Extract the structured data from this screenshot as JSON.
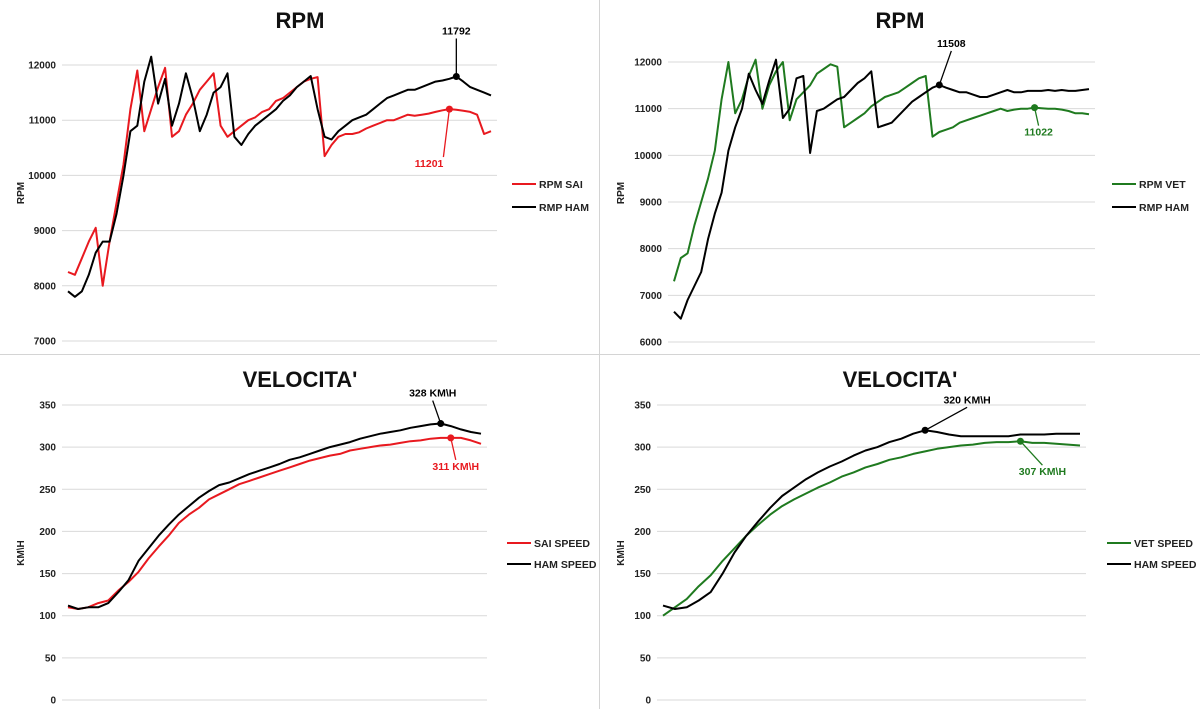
{
  "chart_data": [
    {
      "type": "line",
      "title": "RPM",
      "ylabel": "RPM",
      "ylim": [
        7000,
        12000
      ],
      "yticks": [
        7000,
        8000,
        9000,
        10000,
        11000,
        12000
      ],
      "colors": {
        "a": "#e8191f",
        "b": "#000000"
      },
      "series": [
        {
          "name": "RPM SAI",
          "color": "#e8191f",
          "values": [
            8250,
            8200,
            8500,
            8800,
            9050,
            8000,
            8800,
            9500,
            10200,
            11200,
            11900,
            10800,
            11200,
            11600,
            11950,
            10700,
            10800,
            11100,
            11300,
            11550,
            11700,
            11850,
            10900,
            10700,
            10800,
            10900,
            11000,
            11050,
            11150,
            11200,
            11350,
            11400,
            11500,
            11600,
            11700,
            11750,
            11780,
            10350,
            10550,
            10700,
            10750,
            10750,
            10780,
            10850,
            10900,
            10950,
            11000,
            11000,
            11050,
            11100,
            11080,
            11100,
            11120,
            11150,
            11180,
            11201,
            11190,
            11170,
            11150,
            11100,
            10750,
            10800
          ]
        },
        {
          "name": "RMP HAM",
          "color": "#000000",
          "values": [
            7900,
            7800,
            7900,
            8200,
            8600,
            8800,
            8800,
            9300,
            10000,
            10800,
            10900,
            11700,
            12150,
            11300,
            11750,
            10900,
            11300,
            11850,
            11400,
            10800,
            11100,
            11500,
            11600,
            11850,
            10700,
            10550,
            10750,
            10900,
            11000,
            11100,
            11200,
            11350,
            11450,
            11600,
            11700,
            11800,
            11200,
            10700,
            10650,
            10800,
            10900,
            11000,
            11050,
            11100,
            11200,
            11300,
            11400,
            11450,
            11500,
            11550,
            11550,
            11600,
            11650,
            11700,
            11720,
            11750,
            11792,
            11700,
            11600,
            11550,
            11500,
            11450
          ]
        }
      ],
      "annotations": [
        {
          "text": "11792",
          "series": "RMP HAM",
          "x_index": 56
        },
        {
          "text": "11201",
          "series": "RPM SAI",
          "x_index": 55
        }
      ]
    },
    {
      "type": "line",
      "title": "RPM",
      "ylabel": "RPM",
      "ylim": [
        6000,
        12000
      ],
      "yticks": [
        6000,
        7000,
        8000,
        9000,
        10000,
        11000,
        12000
      ],
      "colors": {
        "a": "#1f7a1f",
        "b": "#000000"
      },
      "series": [
        {
          "name": "RPM VET",
          "color": "#1f7a1f",
          "values": [
            7300,
            7800,
            7900,
            8500,
            9000,
            9500,
            10100,
            11200,
            12000,
            10900,
            11200,
            11700,
            12050,
            11000,
            11500,
            11800,
            12000,
            10750,
            11200,
            11350,
            11500,
            11750,
            11850,
            11950,
            11900,
            10600,
            10700,
            10800,
            10900,
            11050,
            11150,
            11250,
            11300,
            11350,
            11450,
            11550,
            11650,
            11700,
            10400,
            10500,
            10550,
            10600,
            10700,
            10750,
            10800,
            10850,
            10900,
            10950,
            11000,
            10950,
            10980,
            11000,
            11000,
            11022,
            11010,
            11000,
            11000,
            10980,
            10950,
            10900,
            10900,
            10880
          ]
        },
        {
          "name": "RMP HAM",
          "color": "#000000",
          "values": [
            6650,
            6500,
            6900,
            7200,
            7500,
            8200,
            8750,
            9200,
            10100,
            10600,
            11000,
            11750,
            11400,
            11100,
            11600,
            12050,
            10800,
            11000,
            11650,
            11700,
            10050,
            10950,
            11000,
            11100,
            11200,
            11250,
            11400,
            11550,
            11650,
            11800,
            10600,
            10650,
            10700,
            10850,
            11000,
            11150,
            11250,
            11350,
            11450,
            11508,
            11450,
            11400,
            11350,
            11350,
            11300,
            11250,
            11250,
            11300,
            11350,
            11400,
            11350,
            11350,
            11380,
            11380,
            11380,
            11400,
            11380,
            11400,
            11380,
            11380,
            11400,
            11420
          ]
        }
      ],
      "annotations": [
        {
          "text": "11508",
          "series": "RMP HAM",
          "x_index": 39
        },
        {
          "text": "11022",
          "series": "RPM VET",
          "x_index": 53
        }
      ]
    },
    {
      "type": "line",
      "title": "VELOCITA'",
      "ylabel": "KM\\H",
      "ylim": [
        0,
        350
      ],
      "yticks": [
        0,
        50,
        100,
        150,
        200,
        250,
        300,
        350
      ],
      "colors": {
        "a": "#e8191f",
        "b": "#000000"
      },
      "series": [
        {
          "name": "SAI SPEED",
          "color": "#e8191f",
          "values": [
            110,
            108,
            110,
            115,
            118,
            130,
            140,
            152,
            168,
            182,
            195,
            210,
            220,
            228,
            238,
            244,
            250,
            256,
            260,
            264,
            268,
            272,
            276,
            280,
            284,
            287,
            290,
            292,
            296,
            298,
            300,
            302,
            303,
            305,
            307,
            308,
            310,
            311,
            311,
            311,
            308,
            304
          ]
        },
        {
          "name": "HAM SPEED",
          "color": "#000000",
          "values": [
            112,
            108,
            110,
            110,
            115,
            128,
            142,
            165,
            180,
            195,
            208,
            220,
            230,
            240,
            248,
            255,
            258,
            263,
            268,
            272,
            276,
            280,
            285,
            288,
            292,
            296,
            300,
            303,
            306,
            310,
            313,
            316,
            318,
            320,
            323,
            325,
            327,
            328,
            325,
            321,
            318,
            316
          ]
        }
      ],
      "annotations": [
        {
          "text": "328 KM\\H",
          "series": "HAM SPEED",
          "x_index": 37
        },
        {
          "text": "311 KM\\H",
          "series": "SAI SPEED",
          "x_index": 38
        }
      ]
    },
    {
      "type": "line",
      "title": "VELOCITA'",
      "ylabel": "KM\\H",
      "ylim": [
        0,
        350
      ],
      "yticks": [
        0,
        50,
        100,
        150,
        200,
        250,
        300,
        350
      ],
      "colors": {
        "a": "#1f7a1f",
        "b": "#000000"
      },
      "series": [
        {
          "name": "VET SPEED",
          "color": "#1f7a1f",
          "values": [
            100,
            110,
            120,
            135,
            148,
            165,
            180,
            195,
            208,
            220,
            230,
            238,
            245,
            252,
            258,
            265,
            270,
            276,
            280,
            285,
            288,
            292,
            295,
            298,
            300,
            302,
            303,
            305,
            306,
            306,
            307,
            305,
            305,
            304,
            303,
            302
          ]
        },
        {
          "name": "HAM SPEED",
          "color": "#000000",
          "values": [
            112,
            108,
            110,
            118,
            128,
            150,
            175,
            195,
            212,
            228,
            242,
            252,
            262,
            270,
            277,
            283,
            290,
            296,
            300,
            306,
            310,
            316,
            320,
            318,
            315,
            313,
            313,
            313,
            313,
            313,
            315,
            315,
            315,
            316,
            316,
            316
          ]
        }
      ],
      "annotations": [
        {
          "text": "320 KM\\H",
          "series": "HAM SPEED",
          "x_index": 22
        },
        {
          "text": "307 KM\\H",
          "series": "VET SPEED",
          "x_index": 30
        }
      ]
    }
  ]
}
